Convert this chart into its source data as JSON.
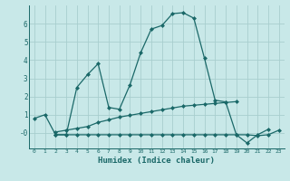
{
  "title": "",
  "xlabel": "Humidex (Indice chaleur)",
  "background_color": "#c8e8e8",
  "grid_color": "#a8cece",
  "line_color": "#1a6868",
  "xlim": [
    -0.5,
    23.5
  ],
  "ylim": [
    -0.85,
    7.0
  ],
  "xticks": [
    0,
    1,
    2,
    3,
    4,
    5,
    6,
    7,
    8,
    9,
    10,
    11,
    12,
    13,
    14,
    15,
    16,
    17,
    18,
    19,
    20,
    21,
    22,
    23
  ],
  "yticks": [
    0,
    1,
    2,
    3,
    4,
    5,
    6
  ],
  "ytick_labels": [
    "-0",
    "1",
    "2",
    "3",
    "4",
    "5",
    "6"
  ],
  "line1_x": [
    0,
    1,
    2,
    3,
    4,
    5,
    6,
    7,
    8,
    9,
    10,
    11,
    12,
    13,
    14,
    15,
    16,
    17,
    18,
    19,
    20,
    21,
    22
  ],
  "line1_y": [
    0.8,
    1.0,
    -0.1,
    -0.1,
    2.5,
    3.2,
    3.8,
    1.4,
    1.3,
    2.65,
    4.4,
    5.7,
    5.9,
    6.55,
    6.6,
    6.3,
    4.1,
    1.8,
    1.7,
    -0.1,
    -0.55,
    -0.1,
    0.2
  ],
  "line2_x": [
    2,
    3,
    4,
    5,
    6,
    7,
    8,
    9,
    10,
    11,
    12,
    13,
    14,
    15,
    16,
    17,
    18,
    19,
    20,
    21,
    22,
    23
  ],
  "line2_y": [
    -0.1,
    -0.1,
    -0.1,
    -0.1,
    -0.1,
    -0.1,
    -0.1,
    -0.1,
    -0.1,
    -0.1,
    -0.1,
    -0.1,
    -0.1,
    -0.1,
    -0.1,
    -0.1,
    -0.1,
    -0.1,
    -0.1,
    -0.15,
    -0.1,
    0.15
  ],
  "line3_x": [
    2,
    3,
    4,
    5,
    6,
    7,
    8,
    9,
    10,
    11,
    12,
    13,
    14,
    15,
    16,
    17,
    18,
    19
  ],
  "line3_y": [
    0.05,
    0.15,
    0.25,
    0.35,
    0.58,
    0.72,
    0.87,
    0.97,
    1.07,
    1.17,
    1.27,
    1.37,
    1.47,
    1.52,
    1.57,
    1.62,
    1.67,
    1.72
  ]
}
